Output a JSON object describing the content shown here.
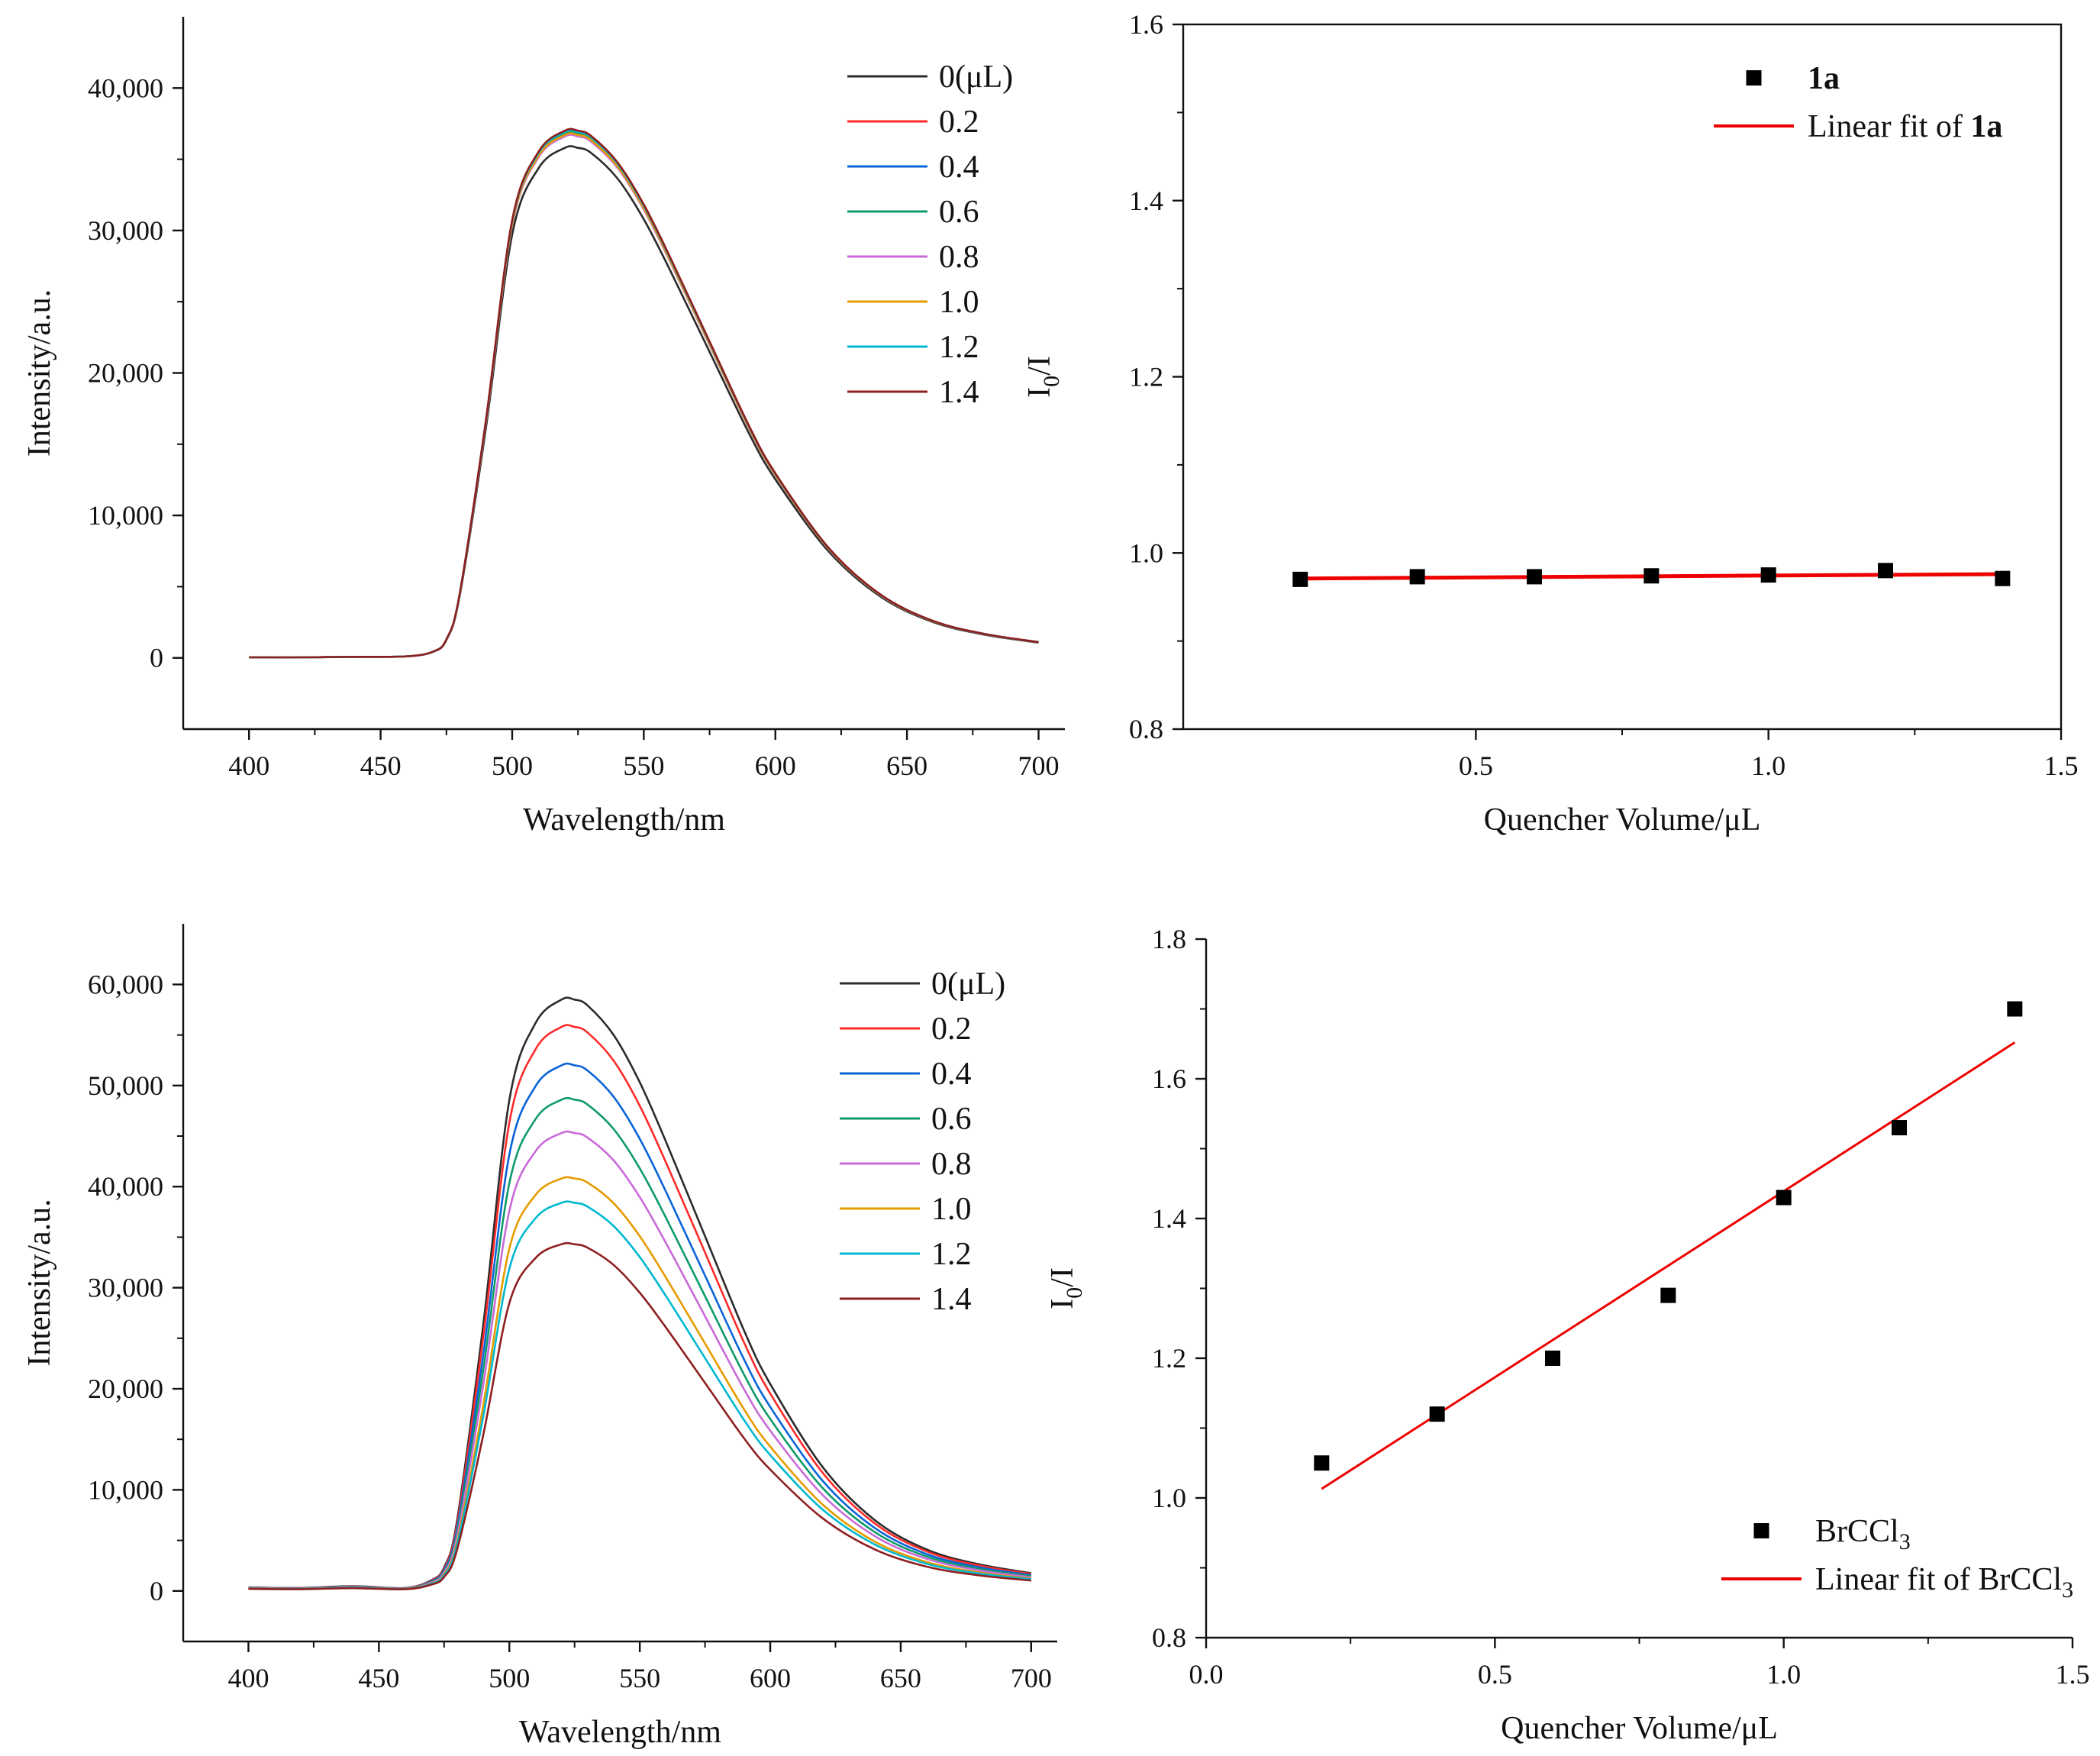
{
  "colors": {
    "s0": "#2b2b2b",
    "s1": "#ff2a2a",
    "s2": "#0a64d8",
    "s3": "#0f9a6a",
    "s4": "#c86ad8",
    "s5": "#e69b00",
    "s6": "#00b8d0",
    "s7": "#8e1f1f",
    "fit": "#ee0000",
    "marker": "#000000"
  },
  "chart_data": [
    {
      "id": "A",
      "type": "line",
      "xlabel": "Wavelength/nm",
      "ylabel": "Intensity/a.u.",
      "xlim": [
        375,
        710
      ],
      "ylim": [
        -5000,
        45000
      ],
      "xticks": [
        "400",
        "450",
        "500",
        "550",
        "600",
        "650",
        "700"
      ],
      "xtick_values": [
        400,
        450,
        500,
        550,
        600,
        650,
        700
      ],
      "yticks": [
        "0",
        "10,000",
        "20,000",
        "30,000",
        "40,000"
      ],
      "ytick_values": [
        0,
        10000,
        20000,
        30000,
        40000
      ],
      "legend_position": "top-right",
      "x": [
        400,
        420,
        440,
        460,
        470,
        475,
        480,
        490,
        500,
        510,
        520,
        525,
        530,
        540,
        550,
        560,
        575,
        590,
        600,
        620,
        640,
        660,
        680,
        700
      ],
      "shape": [
        0.001,
        0.001,
        0.002,
        0.003,
        0.012,
        0.035,
        0.12,
        0.45,
        0.83,
        0.96,
        1.0,
        1.0,
        0.99,
        0.94,
        0.86,
        0.76,
        0.6,
        0.44,
        0.35,
        0.21,
        0.12,
        0.07,
        0.045,
        0.03
      ],
      "series": [
        {
          "name": "0(μL)",
          "peak": 35800,
          "color": "s0"
        },
        {
          "name": "0.2",
          "peak": 37000,
          "color": "s1"
        },
        {
          "name": "0.4",
          "peak": 36700,
          "color": "s2"
        },
        {
          "name": "0.6",
          "peak": 36800,
          "color": "s3"
        },
        {
          "name": "0.8",
          "peak": 36600,
          "color": "s4"
        },
        {
          "name": "1.0",
          "peak": 36700,
          "color": "s5"
        },
        {
          "name": "1.2",
          "peak": 36900,
          "color": "s6"
        },
        {
          "name": "1.4",
          "peak": 37000,
          "color": "s7"
        }
      ]
    },
    {
      "id": "B",
      "type": "scatter",
      "xlabel": "Quencher Volume/μL",
      "ylabel": "I0/I",
      "xlim": [
        0.0,
        1.5
      ],
      "ylim": [
        0.8,
        1.6
      ],
      "xticks": [
        "0.5",
        "1.0",
        "1.5"
      ],
      "xtick_values": [
        0.5,
        1.0,
        1.5
      ],
      "yticks": [
        "0.8",
        "1.0",
        "1.2",
        "1.4",
        "1.6"
      ],
      "ytick_values": [
        0.8,
        1.0,
        1.2,
        1.4,
        1.6
      ],
      "legend_position": "top-right",
      "points": {
        "name": "1a",
        "x": [
          0.2,
          0.4,
          0.6,
          0.8,
          1.0,
          1.2,
          1.4
        ],
        "y": [
          0.97,
          0.973,
          0.973,
          0.974,
          0.975,
          0.98,
          0.971
        ]
      },
      "fit": {
        "name": "Linear fit of 1a",
        "x": [
          0.2,
          1.4
        ],
        "y": [
          0.971,
          0.976
        ]
      }
    },
    {
      "id": "C",
      "type": "line",
      "xlabel": "Wavelength/nm",
      "ylabel": "Intensity/a.u.",
      "xlim": [
        375,
        710
      ],
      "ylim": [
        -5000,
        66000
      ],
      "xticks": [
        "400",
        "450",
        "500",
        "550",
        "600",
        "650",
        "700"
      ],
      "xtick_values": [
        400,
        450,
        500,
        550,
        600,
        650,
        700
      ],
      "yticks": [
        "0",
        "10,000",
        "20,000",
        "30,000",
        "40,000",
        "50,000",
        "60,000"
      ],
      "ytick_values": [
        0,
        10000,
        20000,
        30000,
        40000,
        50000,
        60000
      ],
      "legend_position": "top-right",
      "x": [
        400,
        420,
        440,
        460,
        470,
        475,
        480,
        490,
        500,
        510,
        520,
        525,
        530,
        540,
        550,
        560,
        575,
        590,
        600,
        620,
        640,
        660,
        680,
        700
      ],
      "shape": [
        0.006,
        0.005,
        0.008,
        0.005,
        0.018,
        0.04,
        0.12,
        0.45,
        0.83,
        0.96,
        1.0,
        1.0,
        0.99,
        0.94,
        0.86,
        0.76,
        0.6,
        0.44,
        0.35,
        0.21,
        0.12,
        0.07,
        0.045,
        0.03
      ],
      "series": [
        {
          "name": "0(μL)",
          "peak": 58500,
          "color": "s0"
        },
        {
          "name": "0.2",
          "peak": 55800,
          "color": "s1"
        },
        {
          "name": "0.4",
          "peak": 52000,
          "color": "s2"
        },
        {
          "name": "0.6",
          "peak": 48600,
          "color": "s3"
        },
        {
          "name": "0.8",
          "peak": 45300,
          "color": "s4"
        },
        {
          "name": "1.0",
          "peak": 40800,
          "color": "s5"
        },
        {
          "name": "1.2",
          "peak": 38400,
          "color": "s6"
        },
        {
          "name": "1.4",
          "peak": 34300,
          "color": "s7"
        }
      ]
    },
    {
      "id": "D",
      "type": "scatter",
      "xlabel": "Quencher Volume/μL",
      "ylabel": "I0/I",
      "xlim": [
        0.0,
        1.5
      ],
      "ylim": [
        0.8,
        1.8
      ],
      "xticks": [
        "0.0",
        "0.5",
        "1.0",
        "1.5"
      ],
      "xtick_values": [
        0.0,
        0.5,
        1.0,
        1.5
      ],
      "yticks": [
        "0.8",
        "1.0",
        "1.2",
        "1.4",
        "1.6",
        "1.8"
      ],
      "ytick_values": [
        0.8,
        1.0,
        1.2,
        1.4,
        1.6,
        1.8
      ],
      "legend_position": "bottom-right",
      "points": {
        "name": "BrCCl3",
        "x": [
          0.2,
          0.4,
          0.6,
          0.8,
          1.0,
          1.2,
          1.4
        ],
        "y": [
          1.05,
          1.12,
          1.2,
          1.29,
          1.43,
          1.53,
          1.7
        ]
      },
      "fit": {
        "name": "Linear fit of BrCCl3",
        "x": [
          0.2,
          1.4
        ],
        "y": [
          1.013,
          1.652
        ]
      }
    }
  ]
}
